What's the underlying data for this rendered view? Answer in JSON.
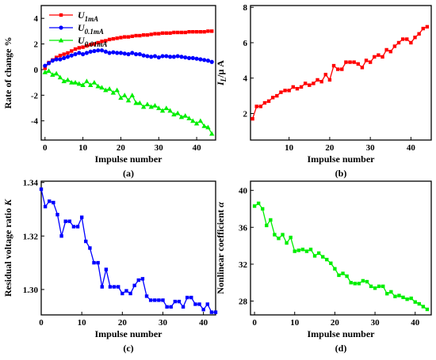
{
  "chart_data": [
    {
      "panel": "a",
      "type": "line",
      "caption": "(a)",
      "xlabel": "Impulse number",
      "ylabel": "Rate of change %",
      "xlim": [
        -1,
        45
      ],
      "ylim": [
        -5.5,
        5
      ],
      "xticks": [
        "0",
        "10",
        "20",
        "30",
        "40"
      ],
      "yticks": [
        "4",
        "2",
        "0",
        "-2",
        "-4"
      ],
      "x": [
        0,
        1,
        2,
        3,
        4,
        5,
        6,
        7,
        8,
        9,
        10,
        11,
        12,
        13,
        14,
        15,
        16,
        17,
        18,
        19,
        20,
        21,
        22,
        23,
        24,
        25,
        26,
        27,
        28,
        29,
        30,
        31,
        32,
        33,
        34,
        35,
        36,
        37,
        38,
        39,
        40,
        41,
        42,
        43,
        44
      ],
      "legend": {
        "position": "top-left",
        "entries": [
          {
            "base": "U",
            "sub": "1mA"
          },
          {
            "base": "U",
            "sub": "0.1mA"
          },
          {
            "base": "U",
            "sub": "0.01mA"
          }
        ]
      },
      "series": [
        {
          "name": "U1mA",
          "color": "#ff0000",
          "marker": "square",
          "values": [
            0.1,
            0.55,
            0.75,
            0.95,
            1.1,
            1.2,
            1.3,
            1.45,
            1.6,
            1.7,
            1.75,
            1.85,
            1.95,
            2.0,
            2.1,
            2.2,
            2.25,
            2.35,
            2.4,
            2.45,
            2.5,
            2.55,
            2.55,
            2.6,
            2.65,
            2.65,
            2.7,
            2.7,
            2.75,
            2.8,
            2.8,
            2.85,
            2.85,
            2.85,
            2.9,
            2.9,
            2.9,
            2.9,
            2.95,
            2.95,
            2.95,
            2.95,
            2.95,
            3.0,
            3.0
          ]
        },
        {
          "name": "U0.1mA",
          "color": "#0000ff",
          "marker": "circle",
          "values": [
            0.3,
            0.5,
            0.7,
            0.8,
            0.8,
            0.9,
            1.0,
            1.1,
            1.2,
            1.3,
            1.2,
            1.3,
            1.4,
            1.45,
            1.5,
            1.5,
            1.4,
            1.3,
            1.35,
            1.3,
            1.3,
            1.25,
            1.2,
            1.3,
            1.2,
            1.2,
            1.1,
            1.05,
            1.0,
            1.05,
            0.95,
            1.05,
            1.05,
            1.0,
            1.0,
            1.05,
            1.0,
            0.95,
            0.9,
            0.9,
            0.85,
            0.8,
            0.75,
            0.7,
            0.6
          ]
        },
        {
          "name": "U0.01mA",
          "color": "#00ee00",
          "marker": "triangle",
          "values": [
            -0.2,
            -0.1,
            -0.4,
            -0.3,
            -0.6,
            -0.9,
            -0.8,
            -1.0,
            -1.0,
            -1.1,
            -1.2,
            -0.9,
            -1.2,
            -1.0,
            -1.3,
            -1.4,
            -1.6,
            -1.5,
            -1.8,
            -1.6,
            -2.2,
            -2.0,
            -2.4,
            -2.0,
            -2.6,
            -2.6,
            -2.9,
            -2.7,
            -2.9,
            -2.8,
            -3.0,
            -3.2,
            -3.0,
            -3.2,
            -3.5,
            -3.4,
            -3.7,
            -3.6,
            -3.8,
            -4.0,
            -4.2,
            -4.0,
            -4.4,
            -4.5,
            -5.0
          ]
        }
      ]
    },
    {
      "panel": "b",
      "type": "line",
      "caption": "(b)",
      "xlabel": "Impulse number",
      "ylabel": "IL/μ A",
      "xlim": [
        0.5,
        45
      ],
      "ylim": [
        0.5,
        8.1
      ],
      "xticks": [
        "10",
        "20",
        "30",
        "40"
      ],
      "yticks": [
        "8",
        "6",
        "4",
        "2"
      ],
      "series": [
        {
          "color": "#ff0000",
          "marker": "square",
          "x": [
            1,
            2,
            3,
            4,
            5,
            6,
            7,
            8,
            9,
            10,
            11,
            12,
            13,
            14,
            15,
            16,
            17,
            18,
            19,
            20,
            21,
            22,
            23,
            24,
            25,
            26,
            27,
            28,
            29,
            30,
            31,
            32,
            33,
            34,
            35,
            36,
            37,
            38,
            39,
            40,
            41,
            42,
            43,
            44
          ],
          "values": [
            1.7,
            2.4,
            2.4,
            2.6,
            2.7,
            2.9,
            3.0,
            3.2,
            3.3,
            3.3,
            3.5,
            3.4,
            3.5,
            3.7,
            3.6,
            3.7,
            3.9,
            3.8,
            4.2,
            3.9,
            4.7,
            4.5,
            4.5,
            4.9,
            4.9,
            4.9,
            4.8,
            4.6,
            5.0,
            4.9,
            5.2,
            5.3,
            5.2,
            5.6,
            5.5,
            5.8,
            6.0,
            6.2,
            6.2,
            6.0,
            6.3,
            6.5,
            6.8,
            6.9
          ]
        }
      ]
    },
    {
      "panel": "c",
      "type": "line",
      "caption": "(c)",
      "xlabel": "Impulse number",
      "ylabel": "Residual voltage ratio K",
      "xlim": [
        0,
        43
      ],
      "ylim": [
        1.2905,
        1.3405
      ],
      "xticks": [
        "0",
        "10",
        "20",
        "30",
        "40"
      ],
      "yticks": [
        "1.34",
        "1.32",
        "1.30"
      ],
      "series": [
        {
          "color": "#0000ff",
          "marker": "square",
          "x": [
            0,
            1,
            2,
            3,
            4,
            5,
            6,
            7,
            8,
            9,
            10,
            11,
            12,
            13,
            14,
            15,
            16,
            17,
            18,
            19,
            20,
            21,
            22,
            23,
            24,
            25,
            26,
            27,
            28,
            29,
            30,
            31,
            32,
            33,
            34,
            35,
            36,
            37,
            38,
            39,
            40,
            41,
            42,
            43
          ],
          "values": [
            1.3375,
            1.331,
            1.333,
            1.3325,
            1.328,
            1.32,
            1.3255,
            1.3255,
            1.3235,
            1.3235,
            1.327,
            1.318,
            1.3155,
            1.31,
            1.31,
            1.301,
            1.3075,
            1.301,
            1.301,
            1.301,
            1.2985,
            1.2995,
            1.2985,
            1.3015,
            1.3035,
            1.304,
            1.2975,
            1.296,
            1.296,
            1.296,
            1.296,
            1.2935,
            1.2935,
            1.2955,
            1.2955,
            1.2935,
            1.297,
            1.297,
            1.2945,
            1.2945,
            1.2925,
            1.2945,
            1.2915,
            1.2915
          ]
        }
      ]
    },
    {
      "panel": "d",
      "type": "line",
      "caption": "(d)",
      "xlabel": "Impulse number",
      "ylabel": "Nonlinear coefficient α",
      "xlim": [
        -1,
        44
      ],
      "ylim": [
        26.5,
        41
      ],
      "xticks": [
        "0",
        "10",
        "20",
        "30",
        "40"
      ],
      "yticks": [
        "40",
        "36",
        "32",
        "28"
      ],
      "series": [
        {
          "color": "#00ee00",
          "marker": "square",
          "x": [
            0,
            1,
            2,
            3,
            4,
            5,
            6,
            7,
            8,
            9,
            10,
            11,
            12,
            13,
            14,
            15,
            16,
            17,
            18,
            19,
            20,
            21,
            22,
            23,
            24,
            25,
            26,
            27,
            28,
            29,
            30,
            31,
            32,
            33,
            34,
            35,
            36,
            37,
            38,
            39,
            40,
            41,
            42,
            43
          ],
          "values": [
            38.3,
            38.6,
            38.0,
            36.2,
            36.8,
            35.2,
            34.8,
            35.2,
            34.3,
            34.9,
            33.4,
            33.5,
            33.6,
            33.4,
            33.6,
            32.9,
            33.2,
            32.8,
            32.5,
            32.1,
            31.5,
            30.8,
            31.0,
            30.7,
            30.0,
            29.9,
            29.9,
            30.2,
            30.1,
            29.6,
            29.4,
            29.6,
            29.6,
            28.8,
            29.0,
            28.5,
            28.6,
            28.4,
            28.2,
            28.3,
            27.9,
            27.7,
            27.4,
            27.1
          ]
        }
      ]
    }
  ]
}
